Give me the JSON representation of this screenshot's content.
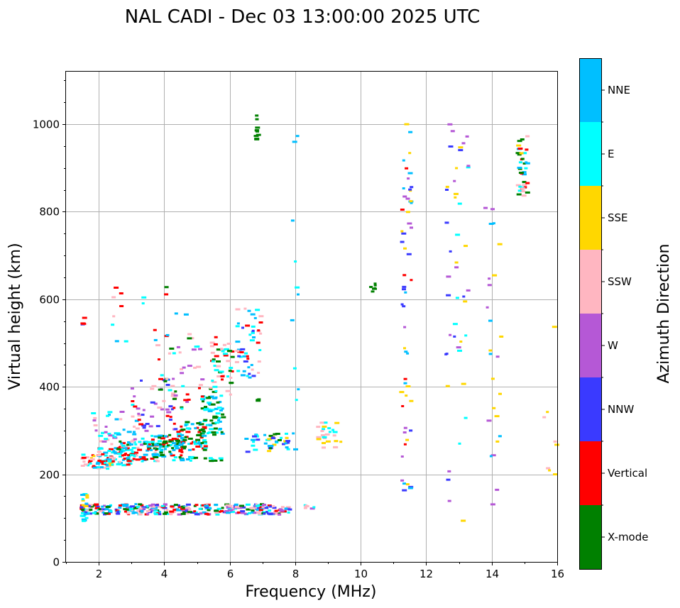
{
  "chart_data": {
    "type": "scatter",
    "title": "NAL CADI - Dec 03 13:00:00 2025 UTC",
    "xlabel": "Frequency (MHz)",
    "ylabel": "Virtual height (km)",
    "xlim": [
      1,
      16
    ],
    "ylim": [
      0,
      1120
    ],
    "xticks": [
      2,
      4,
      6,
      8,
      10,
      12,
      14,
      16
    ],
    "yticks": [
      0,
      200,
      400,
      600,
      800,
      1000
    ],
    "grid": true,
    "colorbar": {
      "label": "Azimuth Direction",
      "categories": [
        {
          "name": "X-mode",
          "color": "#008000"
        },
        {
          "name": "Vertical",
          "color": "#ff0000"
        },
        {
          "name": "NNW",
          "color": "#3a3aff"
        },
        {
          "name": "W",
          "color": "#b558d6"
        },
        {
          "name": "SSW",
          "color": "#ffb6c1"
        },
        {
          "name": "SSE",
          "color": "#ffd700"
        },
        {
          "name": "E",
          "color": "#00ffff"
        },
        {
          "name": "NNE",
          "color": "#00bfff"
        }
      ]
    },
    "segments": [
      {
        "x": [
          1.45,
          7.85
        ],
        "y": [
          108,
          132
        ],
        "mix": [
          "NNE",
          "Vertical",
          "NNW",
          "X-mode",
          "E",
          "W",
          "SSW"
        ],
        "n": 320
      },
      {
        "x": [
          1.5,
          1.65
        ],
        "y": [
          88,
          155
        ],
        "mix": [
          "E",
          "NNE",
          "SSE"
        ],
        "n": 18
      },
      {
        "x": [
          1.5,
          2.4
        ],
        "y": [
          212,
          245
        ],
        "mix": [
          "SSE",
          "E",
          "SSW",
          "NNE",
          "Vertical"
        ],
        "n": 45
      },
      {
        "x": [
          2.0,
          3.0
        ],
        "y": [
          220,
          260
        ],
        "mix": [
          "Vertical",
          "SSW",
          "E",
          "NNE"
        ],
        "n": 60
      },
      {
        "x": [
          2.6,
          3.8
        ],
        "y": [
          228,
          275
        ],
        "mix": [
          "Vertical",
          "NNE",
          "E",
          "SSW",
          "X-mode"
        ],
        "n": 80
      },
      {
        "x": [
          3.6,
          4.6
        ],
        "y": [
          240,
          290
        ],
        "mix": [
          "X-mode",
          "Vertical",
          "E",
          "NNE"
        ],
        "n": 70
      },
      {
        "x": [
          4.4,
          5.3
        ],
        "y": [
          255,
          320
        ],
        "mix": [
          "X-mode",
          "E",
          "NNE",
          "Vertical"
        ],
        "n": 70
      },
      {
        "x": [
          5.1,
          5.85
        ],
        "y": [
          290,
          380
        ],
        "mix": [
          "X-mode",
          "E",
          "NNE"
        ],
        "n": 60
      },
      {
        "x": [
          5.4,
          6.1
        ],
        "y": [
          380,
          520
        ],
        "mix": [
          "X-mode",
          "E",
          "SSW",
          "Vertical"
        ],
        "n": 50
      },
      {
        "x": [
          6.2,
          7.0
        ],
        "y": [
          420,
          590
        ],
        "mix": [
          "E",
          "NNE",
          "NNW",
          "Vertical",
          "SSW"
        ],
        "n": 50
      },
      {
        "x": [
          1.8,
          3.6
        ],
        "y": [
          260,
          360
        ],
        "mix": [
          "SSW",
          "W",
          "E",
          "NNE"
        ],
        "n": 50
      },
      {
        "x": [
          3.0,
          4.4
        ],
        "y": [
          300,
          420
        ],
        "mix": [
          "SSW",
          "W",
          "Vertical",
          "NNW"
        ],
        "n": 40
      },
      {
        "x": [
          3.8,
          5.2
        ],
        "y": [
          340,
          520
        ],
        "mix": [
          "Vertical",
          "W",
          "SSW",
          "X-mode",
          "E"
        ],
        "n": 45
      },
      {
        "x": [
          4.2,
          5.8
        ],
        "y": [
          230,
          240
        ],
        "mix": [
          "NNE",
          "E",
          "X-mode"
        ],
        "n": 22
      },
      {
        "x": [
          6.5,
          7.8
        ],
        "y": [
          250,
          300
        ],
        "mix": [
          "NNW",
          "SSE",
          "NNE",
          "E",
          "X-mode"
        ],
        "n": 40
      },
      {
        "x": [
          8.7,
          9.4
        ],
        "y": [
          255,
          320
        ],
        "mix": [
          "SSE",
          "E",
          "SSW"
        ],
        "n": 25
      },
      {
        "x": [
          11.25,
          11.55
        ],
        "y": [
          120,
          1020
        ],
        "mix": [
          "Vertical",
          "NNE",
          "W",
          "SSE",
          "NNW"
        ],
        "n": 55
      },
      {
        "x": [
          12.6,
          13.3
        ],
        "y": [
          90,
          1000
        ],
        "mix": [
          "W",
          "SSE",
          "NNW",
          "E"
        ],
        "n": 45
      },
      {
        "x": [
          13.8,
          14.3
        ],
        "y": [
          120,
          820
        ],
        "mix": [
          "W",
          "SSE",
          "NNE"
        ],
        "n": 25
      },
      {
        "x": [
          14.8,
          15.1
        ],
        "y": [
          835,
          975
        ],
        "mix": [
          "Vertical",
          "SSE",
          "E",
          "SSW",
          "NNE",
          "X-mode"
        ],
        "n": 40
      },
      {
        "x": [
          15.6,
          16.0
        ],
        "y": [
          200,
          660
        ],
        "mix": [
          "SSE",
          "W",
          "SSW"
        ],
        "n": 8
      },
      {
        "x": [
          6.8,
          6.9
        ],
        "y": [
          965,
          1020
        ],
        "mix": [
          "X-mode"
        ],
        "n": 10
      },
      {
        "x": [
          6.8,
          6.9
        ],
        "y": [
          360,
          380
        ],
        "mix": [
          "X-mode"
        ],
        "n": 4
      },
      {
        "x": [
          10.3,
          10.45
        ],
        "y": [
          615,
          640
        ],
        "mix": [
          "X-mode"
        ],
        "n": 6
      },
      {
        "x": [
          7.9,
          8.1
        ],
        "y": [
          220,
          1020
        ],
        "mix": [
          "NNE",
          "E"
        ],
        "n": 12
      },
      {
        "x": [
          8.3,
          8.6
        ],
        "y": [
          105,
          130
        ],
        "mix": [
          "SSW",
          "E",
          "W"
        ],
        "n": 6
      },
      {
        "x": [
          1.5,
          1.6
        ],
        "y": [
          530,
          575
        ],
        "mix": [
          "Vertical",
          "NNW",
          "SSW"
        ],
        "n": 5
      },
      {
        "x": [
          2.4,
          4.8
        ],
        "y": [
          500,
          640
        ],
        "mix": [
          "Vertical",
          "NNE",
          "E",
          "X-mode",
          "SSW"
        ],
        "n": 18
      }
    ]
  }
}
